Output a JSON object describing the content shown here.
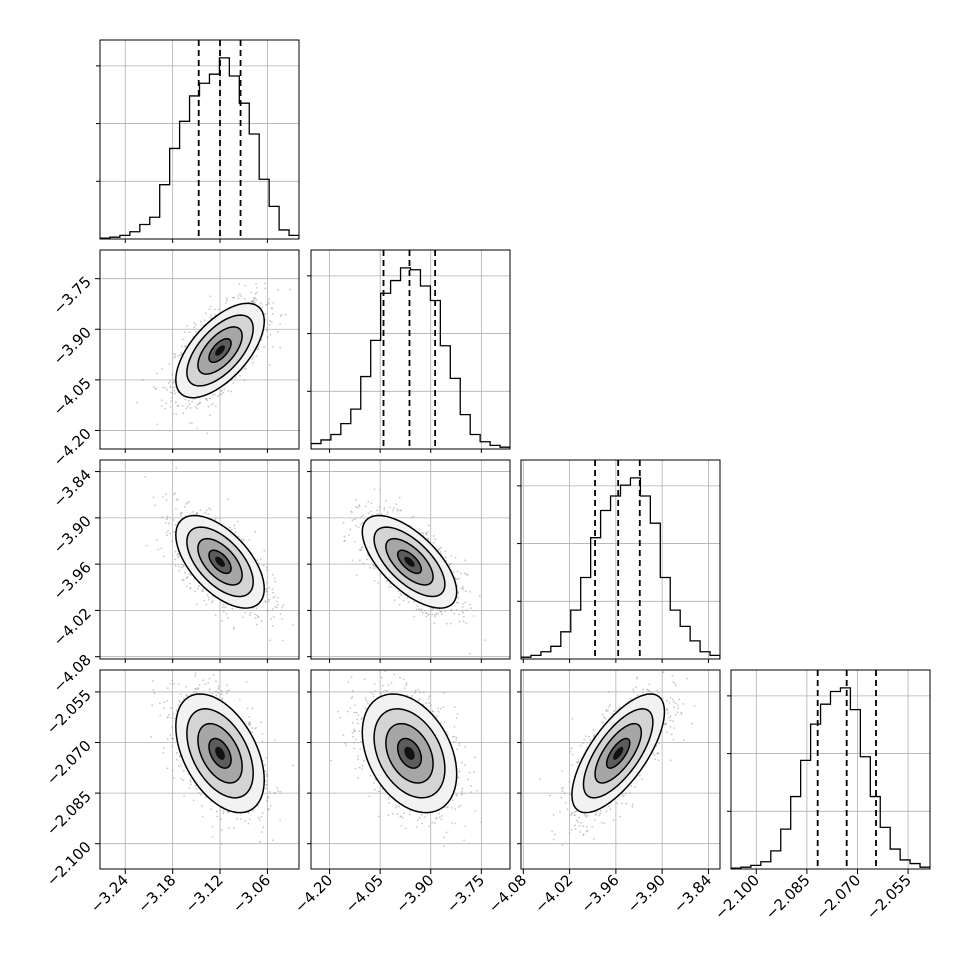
{
  "chart_data": {
    "type": "corner",
    "parameters": [
      {
        "ticks": [
          "−3.24",
          "−3.18",
          "−3.12",
          "−3.06"
        ],
        "tick_values": [
          -3.24,
          -3.18,
          -3.12,
          -3.06
        ],
        "range": [
          -3.272,
          -3.02
        ],
        "quantiles": [
          -3.147,
          -3.12,
          -3.094
        ],
        "histogram": [
          0.005,
          0.01,
          0.02,
          0.04,
          0.08,
          0.12,
          0.3,
          0.5,
          0.65,
          0.79,
          0.86,
          0.91,
          1.0,
          0.9,
          0.75,
          0.58,
          0.33,
          0.18,
          0.05,
          0.02
        ]
      },
      {
        "ticks": [
          "−4.20",
          "−4.05",
          "−3.90",
          "−3.75"
        ],
        "tick_values": [
          -4.2,
          -4.05,
          -3.9,
          -3.75
        ],
        "range": [
          -4.255,
          -3.665
        ],
        "quantiles": [
          -4.04,
          -3.963,
          -3.887
        ],
        "histogram": [
          0.03,
          0.05,
          0.08,
          0.14,
          0.22,
          0.4,
          0.6,
          0.86,
          0.93,
          1.0,
          0.99,
          0.9,
          0.82,
          0.57,
          0.39,
          0.19,
          0.08,
          0.04,
          0.02,
          0.01
        ]
      },
      {
        "ticks": [
          "−4.08",
          "−4.02",
          "−3.96",
          "−3.90",
          "−3.84"
        ],
        "tick_values": [
          -4.08,
          -4.02,
          -3.96,
          -3.9,
          -3.84
        ],
        "range": [
          -4.083,
          -3.825
        ],
        "quantiles": [
          -3.987,
          -3.957,
          -3.929
        ],
        "histogram": [
          0.01,
          0.02,
          0.04,
          0.07,
          0.15,
          0.27,
          0.45,
          0.67,
          0.82,
          0.9,
          0.96,
          1.0,
          0.9,
          0.75,
          0.45,
          0.27,
          0.18,
          0.1,
          0.04,
          0.02
        ]
      },
      {
        "ticks": [
          "−2.100",
          "−2.085",
          "−2.070",
          "−2.055"
        ],
        "tick_values": [
          -2.1,
          -2.085,
          -2.07,
          -2.055
        ],
        "range": [
          -2.1075,
          -2.0485
        ],
        "quantiles": [
          -2.0818,
          -2.0732,
          -2.0645
        ],
        "histogram": [
          0.005,
          0.01,
          0.02,
          0.04,
          0.1,
          0.22,
          0.4,
          0.6,
          0.8,
          0.91,
          0.98,
          1.0,
          0.88,
          0.62,
          0.4,
          0.23,
          0.11,
          0.05,
          0.03,
          0.01
        ]
      }
    ],
    "pairs": [
      {
        "row": 1,
        "col": 0,
        "center": [
          -3.12,
          -3.963
        ],
        "sigma": [
          0.028,
          0.07
        ],
        "rho": 0.62
      },
      {
        "row": 2,
        "col": 0,
        "center": [
          -3.12,
          -3.957
        ],
        "sigma": [
          0.028,
          0.03
        ],
        "rho": -0.58
      },
      {
        "row": 2,
        "col": 1,
        "center": [
          -3.963,
          -3.957
        ],
        "sigma": [
          0.07,
          0.03
        ],
        "rho": -0.65
      },
      {
        "row": 3,
        "col": 0,
        "center": [
          -3.12,
          -2.0732
        ],
        "sigma": [
          0.028,
          0.0088
        ],
        "rho": -0.45
      },
      {
        "row": 3,
        "col": 1,
        "center": [
          -3.963,
          -2.0732
        ],
        "sigma": [
          0.07,
          0.0088
        ],
        "rho": -0.35
      },
      {
        "row": 3,
        "col": 2,
        "center": [
          -3.957,
          -2.0732
        ],
        "sigma": [
          0.03,
          0.0088
        ],
        "rho": 0.7
      }
    ],
    "contour_levels_sigma": [
      0.5,
      1.0,
      1.5,
      2.0
    ],
    "grid": true,
    "colors": {
      "line": "#000000",
      "points": "#9a9a9a",
      "grid": "#b0b0b0"
    }
  }
}
